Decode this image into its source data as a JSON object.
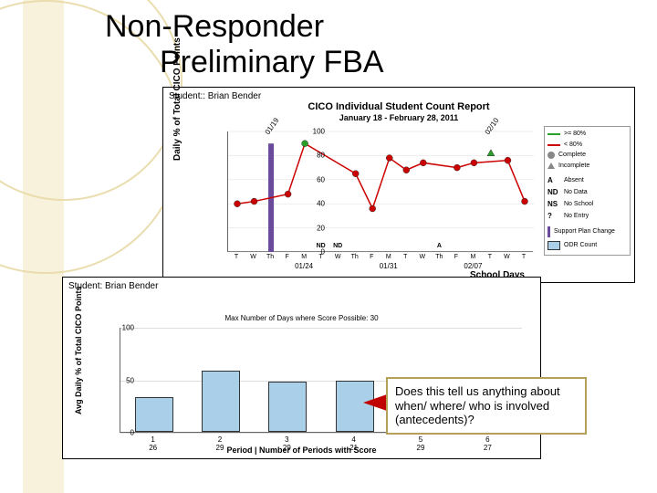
{
  "title_line1": "Non-Responder",
  "title_line2": "Preliminary FBA",
  "panel1": {
    "student_label": "Student:: Brian Bender",
    "subtitle": "CICO Individual Student Count Report",
    "dates": "January 18 - February 28, 2011",
    "ylabel": "Daily % of\nTotal CICO Points",
    "xlabel": "School Days",
    "ylim": [
      0,
      100
    ],
    "ytick_step": 20,
    "x_day_labels": [
      "T",
      "W",
      "Th",
      "F",
      "M",
      "T",
      "W",
      "Th",
      "F",
      "M",
      "T",
      "W",
      "Th",
      "F",
      "M",
      "T",
      "W",
      "T"
    ],
    "x_date_labels": {
      "4": "01/24",
      "9": "01/31",
      "14": "02/07"
    },
    "diag_labels": {
      "2": "01/19",
      "15": "02/10"
    },
    "nd_labels": {
      "5": "ND",
      "6": "ND"
    },
    "a_labels": {
      "12": "A"
    },
    "bar_index": 2,
    "bar_value": 90,
    "bar_color": "#6a4a9a",
    "line_color": "#cc0000",
    "complete_points": [
      {
        "i": 0,
        "v": 40
      },
      {
        "i": 1,
        "v": 42
      },
      {
        "i": 3,
        "v": 48
      },
      {
        "i": 4,
        "v": 90
      },
      {
        "i": 7,
        "v": 65
      },
      {
        "i": 8,
        "v": 36
      },
      {
        "i": 9,
        "v": 78
      },
      {
        "i": 10,
        "v": 68
      },
      {
        "i": 11,
        "v": 74
      },
      {
        "i": 13,
        "v": 70
      },
      {
        "i": 14,
        "v": 74
      },
      {
        "i": 16,
        "v": 76
      },
      {
        "i": 17,
        "v": 42
      }
    ],
    "incomplete_points": [
      {
        "i": 15,
        "v": 82
      }
    ],
    "green_color": "#2aa02a",
    "legend": {
      "ge80": ">= 80%",
      "lt80": "< 80%",
      "complete": "Complete",
      "incomplete": "Incomplete",
      "a": "Absent",
      "nd": "No Data",
      "ns": "No School",
      "q": "No Entry",
      "bar": "Support Plan Change",
      "box": "ODR Count",
      "A": "A",
      "ND": "ND",
      "NS": "NS",
      "Q": "?"
    }
  },
  "panel2": {
    "student_label": "Student: Brian Bender",
    "sub": "Max Number of Days where Score Possible: 30",
    "ylabel": "Avg Daily % of\nTotal CICO Points",
    "xlabel": "Period | Number of Periods with Score",
    "ylim": [
      0,
      100
    ],
    "yticks": [
      0,
      50,
      100
    ],
    "bar_color": "#a9d0e8",
    "bar_border": "#333333",
    "bars": [
      {
        "label": "1\n26",
        "v": 33
      },
      {
        "label": "2\n29",
        "v": 58
      },
      {
        "label": "3\n29",
        "v": 48
      },
      {
        "label": "4\n21",
        "v": 49
      },
      {
        "label": "5\n29",
        "v": 48
      },
      {
        "label": "6\n27",
        "v": 30
      }
    ]
  },
  "callout_text": "Does this tell us anything about when/ where/ who is involved (antecedents)?"
}
